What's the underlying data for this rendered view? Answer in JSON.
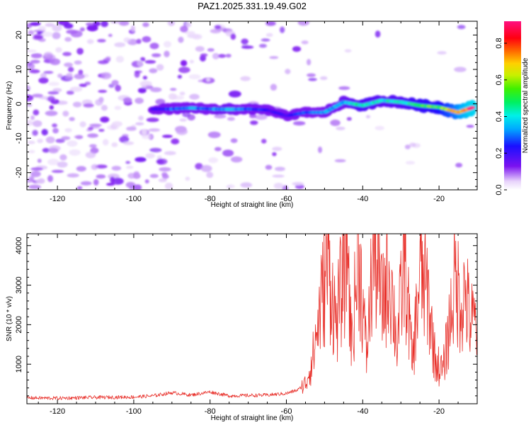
{
  "title": "PAZ1.2025.331.19.49.G02",
  "chart_data": [
    {
      "type": "heatmap",
      "title": "PAZ1.2025.331.19.49.G02",
      "xlabel": "Height of straight line (km)",
      "ylabel": "Frequency (Hz)",
      "xlim": [
        -128,
        -10
      ],
      "ylim": [
        -25,
        24
      ],
      "xticks": [
        -120,
        -100,
        -80,
        -60,
        -40,
        -20
      ],
      "yticks": [
        -20,
        -10,
        0,
        10,
        20
      ],
      "colorbar": {
        "label": "Normalized spectral amplitude",
        "range": [
          0,
          0.92
        ],
        "ticks": [
          0.0,
          0.2,
          0.4,
          0.6,
          0.8
        ],
        "colormap": "hsv-like (violet-blue-cyan-green-yellow-red-magenta)"
      },
      "signal_track": [
        {
          "x": -95,
          "y": -1.5,
          "amp": 0.18
        },
        {
          "x": -90,
          "y": -1.5,
          "amp": 0.28
        },
        {
          "x": -85,
          "y": -1.2,
          "amp": 0.32
        },
        {
          "x": -80,
          "y": -1.5,
          "amp": 0.3
        },
        {
          "x": -75,
          "y": -1.6,
          "amp": 0.35
        },
        {
          "x": -70,
          "y": -1.5,
          "amp": 0.28
        },
        {
          "x": -65,
          "y": -1.8,
          "amp": 0.22
        },
        {
          "x": -60,
          "y": -3.5,
          "amp": 0.2
        },
        {
          "x": -55,
          "y": -2.5,
          "amp": 0.28
        },
        {
          "x": -50,
          "y": -2.5,
          "amp": 0.32
        },
        {
          "x": -45,
          "y": 0.5,
          "amp": 0.35
        },
        {
          "x": -40,
          "y": -0.5,
          "amp": 0.45
        },
        {
          "x": -35,
          "y": 1.0,
          "amp": 0.4
        },
        {
          "x": -30,
          "y": 0.5,
          "amp": 0.42
        },
        {
          "x": -25,
          "y": -0.5,
          "amp": 0.5
        },
        {
          "x": -20,
          "y": -1.0,
          "amp": 0.55
        },
        {
          "x": -15,
          "y": -2.5,
          "amp": 0.75
        },
        {
          "x": -11,
          "y": -1.0,
          "amp": 0.92
        }
      ]
    },
    {
      "type": "line",
      "title": "",
      "xlabel": "Height of straight line (km)",
      "ylabel": "SNR (10 * v/v)",
      "xlim": [
        -128,
        -10
      ],
      "ylim": [
        0,
        4300
      ],
      "xticks": [
        -120,
        -100,
        -80,
        -60,
        -40,
        -20
      ],
      "yticks": [
        1000,
        2000,
        3000,
        4000
      ],
      "color": "#e8302a",
      "series": [
        {
          "name": "SNR",
          "points": [
            [
              -128,
              150
            ],
            [
              -120,
              140
            ],
            [
              -110,
              160
            ],
            [
              -100,
              170
            ],
            [
              -95,
              200
            ],
            [
              -90,
              280
            ],
            [
              -85,
              220
            ],
            [
              -80,
              300
            ],
            [
              -75,
              200
            ],
            [
              -70,
              210
            ],
            [
              -65,
              220
            ],
            [
              -60,
              260
            ],
            [
              -57,
              350
            ],
            [
              -55,
              500
            ],
            [
              -53,
              1200
            ],
            [
              -51,
              2500
            ],
            [
              -49,
              3600
            ],
            [
              -47,
              2000
            ],
            [
              -45,
              3300
            ],
            [
              -44,
              4250
            ],
            [
              -43,
              1500
            ],
            [
              -41,
              3800
            ],
            [
              -39,
              1200
            ],
            [
              -37,
              4100
            ],
            [
              -35,
              2500
            ],
            [
              -33,
              3400
            ],
            [
              -31,
              1500
            ],
            [
              -29,
              3700
            ],
            [
              -27,
              1000
            ],
            [
              -25,
              3300
            ],
            [
              -23,
              2800
            ],
            [
              -21,
              1100
            ],
            [
              -19,
              800
            ],
            [
              -17,
              2200
            ],
            [
              -16,
              3100
            ],
            [
              -14,
              2600
            ],
            [
              -13,
              2800
            ],
            [
              -12,
              2100
            ],
            [
              -10,
              2000
            ]
          ]
        }
      ]
    }
  ]
}
